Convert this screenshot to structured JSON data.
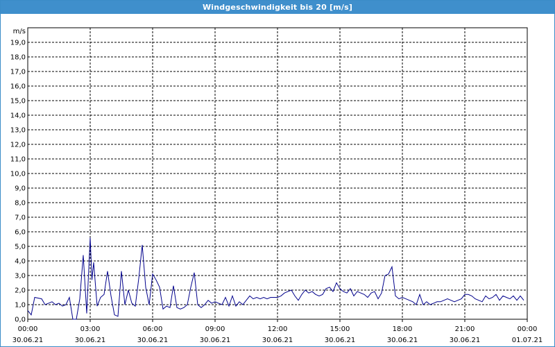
{
  "window": {
    "title": "Windgeschwindigkeit bis 20 [m/s]"
  },
  "colors": {
    "titlebar": "#3f8fcc",
    "line": "#00008b",
    "grid": "#000000"
  },
  "chart_data": {
    "type": "line",
    "title": "Windgeschwindigkeit bis 20 [m/s]",
    "ylabel": "m/s",
    "xlabel": "",
    "ylim": [
      0,
      20
    ],
    "xlim_hours": [
      0,
      24
    ],
    "grid": true,
    "y_ticks": [
      "0,0",
      "1,0",
      "2,0",
      "3,0",
      "4,0",
      "5,0",
      "6,0",
      "7,0",
      "8,0",
      "9,0",
      "10,0",
      "11,0",
      "12,0",
      "13,0",
      "14,0",
      "15,0",
      "16,0",
      "17,0",
      "18,0",
      "19,0"
    ],
    "x_ticks": [
      {
        "time": "00:00",
        "date": "30.06.21"
      },
      {
        "time": "03:00",
        "date": "30.06.21"
      },
      {
        "time": "06:00",
        "date": "30.06.21"
      },
      {
        "time": "09:00",
        "date": "30.06.21"
      },
      {
        "time": "12:00",
        "date": "30.06.21"
      },
      {
        "time": "15:00",
        "date": "30.06.21"
      },
      {
        "time": "18:00",
        "date": "30.06.21"
      },
      {
        "time": "21:00",
        "date": "30.06.21"
      },
      {
        "time": "00:00",
        "date": "01.07.21"
      }
    ],
    "series": [
      {
        "x": [
          "00:00",
          "00:10",
          "00:20",
          "00:40",
          "00:50",
          "01:00",
          "01:10",
          "01:20",
          "01:30",
          "01:40",
          "01:50",
          "02:00",
          "02:10",
          "02:20",
          "02:30",
          "02:40",
          "02:50",
          "03:00",
          "03:05",
          "03:10",
          "03:20",
          "03:30",
          "03:40",
          "03:50",
          "04:00",
          "04:10",
          "04:20",
          "04:30",
          "04:40",
          "04:50",
          "05:00",
          "05:10",
          "05:20",
          "05:30",
          "05:40",
          "05:50",
          "06:00",
          "06:10",
          "06:20",
          "06:30",
          "06:40",
          "06:50",
          "07:00",
          "07:10",
          "07:20",
          "07:30",
          "07:40",
          "07:50",
          "08:00",
          "08:10",
          "08:20",
          "08:30",
          "08:40",
          "08:50",
          "09:00",
          "09:10",
          "09:20",
          "09:30",
          "09:40",
          "09:50",
          "10:00",
          "10:10",
          "10:20",
          "10:30",
          "10:40",
          "10:50",
          "11:00",
          "11:10",
          "11:20",
          "11:30",
          "11:40",
          "11:50",
          "12:00",
          "12:10",
          "12:20",
          "12:30",
          "12:40",
          "12:50",
          "13:00",
          "13:10",
          "13:20",
          "13:30",
          "13:40",
          "13:50",
          "14:00",
          "14:10",
          "14:20",
          "14:30",
          "14:40",
          "14:50",
          "15:00",
          "15:10",
          "15:20",
          "15:30",
          "15:40",
          "15:50",
          "16:00",
          "16:10",
          "16:20",
          "16:30",
          "16:40",
          "16:50",
          "17:00",
          "17:10",
          "17:20",
          "17:30",
          "17:40",
          "17:50",
          "18:00",
          "18:10",
          "18:20",
          "18:30",
          "18:40",
          "18:50",
          "19:00",
          "19:10",
          "19:20",
          "19:30",
          "19:40",
          "19:50",
          "20:00",
          "20:10",
          "20:20",
          "20:30",
          "20:40",
          "20:50",
          "21:00",
          "21:10",
          "21:20",
          "21:30",
          "21:40",
          "21:50",
          "22:00",
          "22:10",
          "22:20",
          "22:30",
          "22:40",
          "22:50",
          "23:00",
          "23:10",
          "23:20",
          "23:30",
          "23:40",
          "23:50"
        ],
        "values": [
          0.6,
          0.3,
          1.5,
          1.4,
          1.0,
          1.1,
          1.2,
          1.0,
          1.1,
          0.9,
          1.0,
          1.5,
          0.0,
          0.0,
          1.4,
          4.4,
          0.4,
          5.6,
          2.7,
          3.9,
          0.9,
          1.5,
          1.7,
          3.3,
          1.6,
          0.3,
          0.2,
          3.3,
          1.0,
          2.0,
          1.1,
          0.9,
          2.8,
          5.1,
          2.2,
          1.0,
          3.1,
          2.7,
          2.2,
          0.7,
          0.9,
          0.8,
          2.3,
          0.8,
          0.7,
          0.8,
          1.0,
          2.2,
          3.2,
          1.0,
          0.8,
          1.0,
          1.3,
          1.1,
          1.2,
          1.1,
          1.0,
          1.5,
          0.9,
          1.6,
          0.9,
          1.2,
          1.0,
          1.3,
          1.6,
          1.4,
          1.5,
          1.4,
          1.5,
          1.4,
          1.5,
          1.5,
          1.5,
          1.6,
          1.8,
          1.9,
          2.0,
          1.6,
          1.3,
          1.7,
          2.0,
          1.8,
          1.9,
          1.7,
          1.6,
          1.7,
          2.1,
          2.2,
          1.9,
          2.5,
          2.1,
          1.9,
          1.8,
          2.1,
          1.6,
          1.9,
          1.8,
          1.7,
          1.5,
          1.8,
          1.9,
          1.4,
          1.8,
          3.0,
          3.1,
          3.6,
          1.6,
          1.4,
          1.5,
          1.4,
          1.3,
          1.2,
          1.0,
          1.7,
          1.0,
          1.2,
          1.0,
          1.1,
          1.2,
          1.2,
          1.3,
          1.4,
          1.3,
          1.2,
          1.3,
          1.4,
          1.7,
          1.7,
          1.6,
          1.4,
          1.3,
          1.2,
          1.6,
          1.4,
          1.5,
          1.7,
          1.3,
          1.6,
          1.5,
          1.4,
          1.6,
          1.3,
          1.6,
          1.3
        ]
      }
    ]
  }
}
